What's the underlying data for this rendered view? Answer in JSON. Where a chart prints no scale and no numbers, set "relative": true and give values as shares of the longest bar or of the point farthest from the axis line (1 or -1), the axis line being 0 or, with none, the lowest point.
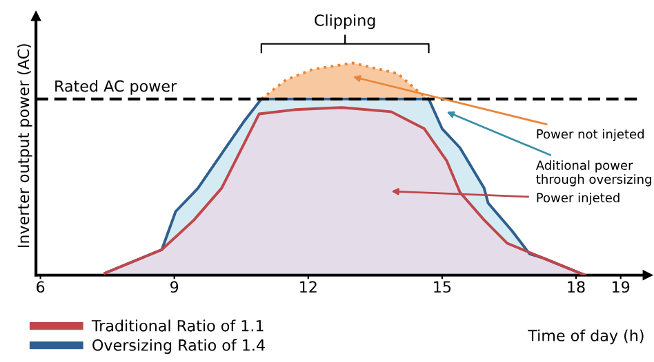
{
  "chart_data": {
    "type": "area",
    "relative": true,
    "xlabel": "Time of day (h)",
    "ylabel": "Inverter output power (AC)",
    "xlim": [
      5.9,
      19.6
    ],
    "xticks": [
      6,
      9,
      12,
      15,
      18,
      19
    ],
    "series": [
      {
        "name": "Oversizing Ratio of 1.4",
        "color": "#2f5f8f",
        "x": [
          7.45,
          8.72,
          9.03,
          9.44,
          9.53,
          10.15,
          10.58,
          10.95,
          14.7,
          15.0,
          15.4,
          15.94,
          16.03,
          16.56,
          16.96,
          17.27,
          18.2
        ],
        "values": [
          0.01,
          0.12,
          0.3,
          0.39,
          0.41,
          0.6,
          0.73,
          0.83,
          0.83,
          0.69,
          0.6,
          0.41,
          0.34,
          0.21,
          0.1,
          0.08,
          0.0
        ]
      },
      {
        "name": "Traditional Ratio of 1.1",
        "color": "#c0474a",
        "x": [
          7.45,
          8.72,
          9.44,
          10.06,
          10.9,
          11.7,
          12.75,
          13.86,
          14.6,
          15.1,
          15.4,
          15.94,
          16.46,
          17.27,
          18.2
        ],
        "values": [
          0.01,
          0.12,
          0.26,
          0.41,
          0.76,
          0.78,
          0.79,
          0.77,
          0.69,
          0.54,
          0.39,
          0.26,
          0.15,
          0.08,
          0.0
        ]
      },
      {
        "color": "#e8863a",
        "line_style": "dotted",
        "x": [
          10.95,
          11.5,
          12.1,
          13.0,
          14.0,
          14.5,
          14.7
        ],
        "values": [
          0.83,
          0.92,
          0.97,
          1.0,
          0.95,
          0.86,
          0.83
        ]
      }
    ],
    "ref_lines": [
      {
        "axis": "y",
        "value": 0.83,
        "label": "Rated AC power",
        "color": "#000000",
        "line_style": "dashed"
      }
    ],
    "annotations": [
      "Clipping",
      "Power not injeted",
      "Aditional power\nthrough oversizing",
      "Power injeted"
    ],
    "legend": "bottom left",
    "grid": false
  }
}
